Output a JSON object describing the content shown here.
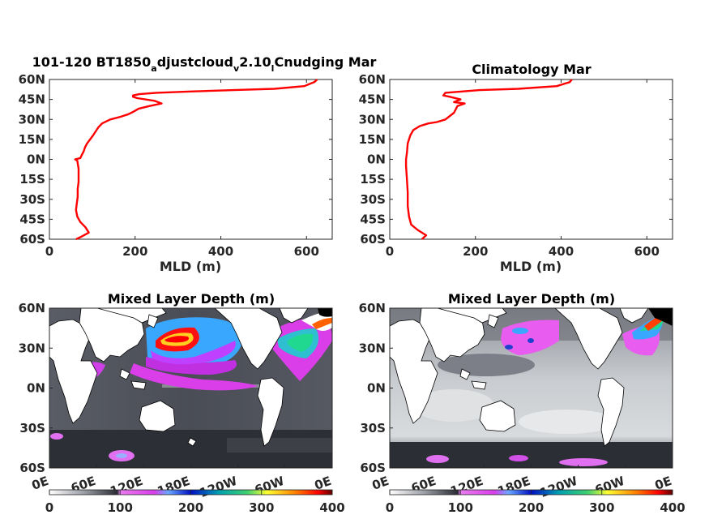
{
  "chart_data": [
    {
      "type": "line",
      "title_parts": [
        "101-120 BT1850",
        "a",
        "djustcloud",
        "v",
        "2.10",
        "l",
        "Cnudging Mar"
      ],
      "xlabel": "MLD (m)",
      "xlim": [
        0,
        660
      ],
      "ylim": [
        -60,
        60
      ],
      "xticks": [
        "0",
        "200",
        "400",
        "600"
      ],
      "yticks": [
        "60N",
        "45N",
        "30N",
        "15N",
        "0N",
        "15S",
        "30S",
        "45S",
        "60S"
      ],
      "color": "#ff0000",
      "points": [
        [
          62,
          -60
        ],
        [
          75,
          -58
        ],
        [
          92,
          -55
        ],
        [
          84,
          -51
        ],
        [
          72,
          -47
        ],
        [
          65,
          -43
        ],
        [
          62,
          -38
        ],
        [
          64,
          -33
        ],
        [
          66,
          -28
        ],
        [
          66,
          -22
        ],
        [
          68,
          -17
        ],
        [
          68,
          -12
        ],
        [
          68,
          -7
        ],
        [
          66,
          -3
        ],
        [
          65,
          -1
        ],
        [
          60,
          0
        ],
        [
          72,
          1
        ],
        [
          75,
          3
        ],
        [
          80,
          6
        ],
        [
          83,
          9
        ],
        [
          88,
          12
        ],
        [
          95,
          15
        ],
        [
          102,
          18
        ],
        [
          108,
          21
        ],
        [
          114,
          24
        ],
        [
          123,
          27
        ],
        [
          142,
          30
        ],
        [
          166,
          32
        ],
        [
          185,
          34
        ],
        [
          197,
          36
        ],
        [
          208,
          38
        ],
        [
          233,
          40
        ],
        [
          262,
          42
        ],
        [
          245,
          44
        ],
        [
          205,
          46
        ],
        [
          195,
          47
        ],
        [
          195,
          48
        ],
        [
          210,
          49
        ],
        [
          250,
          50
        ],
        [
          330,
          51
        ],
        [
          430,
          52
        ],
        [
          525,
          53
        ],
        [
          595,
          55
        ],
        [
          610,
          57
        ],
        [
          618,
          58
        ],
        [
          625,
          60
        ]
      ]
    },
    {
      "type": "line",
      "title": "Climatology Mar",
      "xlabel": "MLD (m)",
      "xlim": [
        0,
        660
      ],
      "ylim": [
        -60,
        60
      ],
      "xticks": [
        "0",
        "200",
        "400",
        "600"
      ],
      "yticks": [
        "60N",
        "45N",
        "30N",
        "15N",
        "0N",
        "15S",
        "30S",
        "45S",
        "60S"
      ],
      "color": "#ff0000",
      "points": [
        [
          75,
          -60
        ],
        [
          85,
          -57
        ],
        [
          65,
          -53
        ],
        [
          50,
          -49
        ],
        [
          45,
          -43
        ],
        [
          42,
          -35
        ],
        [
          42,
          -25
        ],
        [
          40,
          -15
        ],
        [
          38,
          -5
        ],
        [
          38,
          0
        ],
        [
          40,
          5
        ],
        [
          42,
          12
        ],
        [
          48,
          18
        ],
        [
          55,
          22
        ],
        [
          70,
          25
        ],
        [
          90,
          27
        ],
        [
          110,
          28
        ],
        [
          130,
          30
        ],
        [
          150,
          35
        ],
        [
          158,
          40
        ],
        [
          175,
          42
        ],
        [
          150,
          43
        ],
        [
          165,
          45
        ],
        [
          140,
          47
        ],
        [
          125,
          48
        ],
        [
          130,
          50
        ],
        [
          210,
          52
        ],
        [
          300,
          53
        ],
        [
          390,
          55
        ],
        [
          410,
          57
        ],
        [
          420,
          58
        ],
        [
          425,
          60
        ]
      ]
    },
    {
      "type": "heatmap",
      "title": "Mixed Layer Depth (m)",
      "x_tick_labels": [
        "0E",
        "60E",
        "120E",
        "180E",
        "120W",
        "60W",
        "0E"
      ],
      "y_tick_labels": [
        "60N",
        "30N",
        "0N",
        "30S",
        "60S"
      ],
      "lat_range": [
        -60,
        60
      ],
      "colorbar": {
        "range": [
          0,
          400
        ],
        "tick_labels": [
          "0",
          "100",
          "200",
          "300",
          "400"
        ]
      }
    },
    {
      "type": "heatmap",
      "title": "Mixed Layer Depth (m)",
      "x_tick_labels": [
        "0E",
        "60E",
        "120E",
        "180E",
        "120W",
        "60W",
        "0E"
      ],
      "y_tick_labels": [
        "60N",
        "30N",
        "0N",
        "30S",
        "60S"
      ],
      "lat_range": [
        -60,
        60
      ],
      "colorbar": {
        "range": [
          0,
          400
        ],
        "tick_labels": [
          "0",
          "100",
          "200",
          "300",
          "400"
        ]
      }
    }
  ]
}
